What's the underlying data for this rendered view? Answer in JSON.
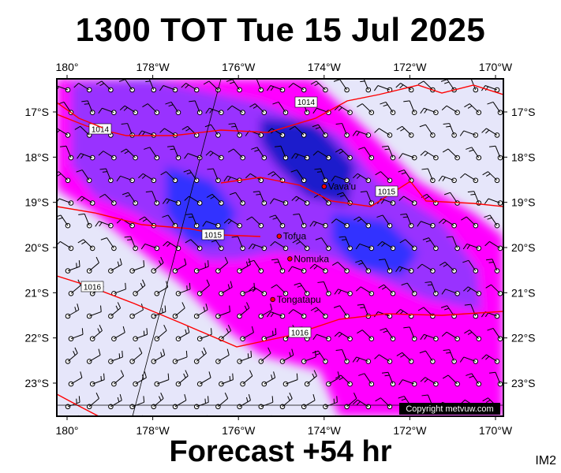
{
  "title": "1300 TOT Tue 15 Jul 2025",
  "footer": "Forecast +54 hr",
  "product_code": "IM2",
  "copyright": "Copyright metvuw.com",
  "lon_labels": [
    "180°",
    "178°W",
    "176°W",
    "174°W",
    "172°W",
    "170°W"
  ],
  "lat_labels": [
    "17°S",
    "18°S",
    "19°S",
    "20°S",
    "21°S",
    "22°S",
    "23°S"
  ],
  "places": [
    {
      "name": "Vava'u",
      "lon": -174.0,
      "lat": -18.65
    },
    {
      "name": "Tofua",
      "lon": -175.05,
      "lat": -19.75
    },
    {
      "name": "Nomuka",
      "lon": -174.8,
      "lat": -20.25
    },
    {
      "name": "Tongatapu",
      "lon": -175.2,
      "lat": -21.15
    }
  ],
  "isobars": [
    {
      "label": "1014"
    },
    {
      "label": "1014"
    },
    {
      "label": "1015"
    },
    {
      "label": "1015"
    },
    {
      "label": "1016"
    },
    {
      "label": "1016"
    }
  ],
  "colors": {
    "background": "#e6e6fa",
    "rain_light": "#ff00ff",
    "rain_medium": "#9933ff",
    "rain_heavy": "#3333ff",
    "rain_very_heavy": "#1a1acc",
    "isobar": "#ff0000"
  }
}
